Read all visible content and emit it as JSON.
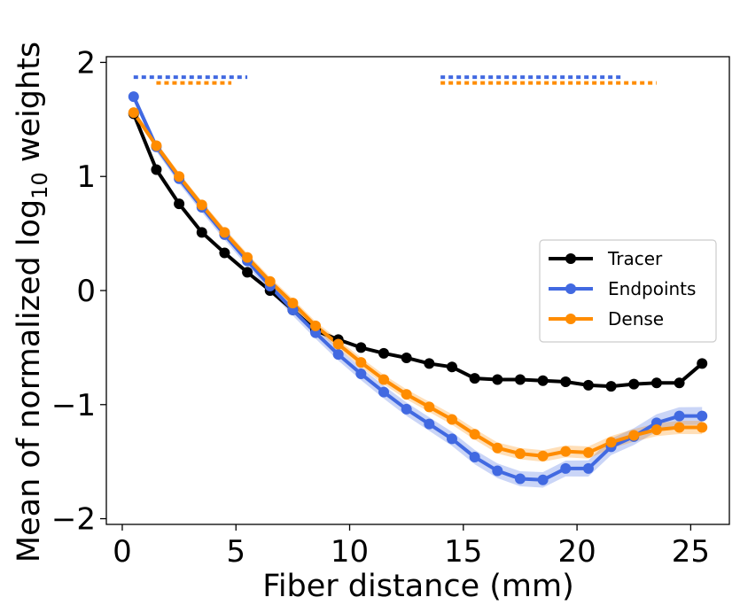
{
  "chart_data": {
    "type": "line",
    "xlabel": "Fiber distance (mm)",
    "ylabel": "Mean of normalized log",
    "ylabel_sub": "10",
    "ylabel_suffix": " weights",
    "xlim": [
      -0.7,
      26.7
    ],
    "ylim": [
      -2.05,
      2.05
    ],
    "xticks": [
      0,
      5,
      10,
      15,
      20,
      25
    ],
    "xtick_labels": [
      "0",
      "5",
      "10",
      "15",
      "20",
      "25"
    ],
    "yticks": [
      2,
      1,
      0,
      -1,
      -2
    ],
    "ytick_labels": [
      "2",
      "1",
      "0",
      "−1",
      "−2"
    ],
    "grid": false,
    "legend_placement": "center-right",
    "x": [
      0.5,
      1.5,
      2.5,
      3.5,
      4.5,
      5.5,
      6.5,
      7.5,
      8.5,
      9.5,
      10.5,
      11.5,
      12.5,
      13.5,
      14.5,
      15.5,
      16.5,
      17.5,
      18.5,
      19.5,
      20.5,
      21.5,
      22.5,
      23.5,
      24.5,
      25.5
    ],
    "series": [
      {
        "name": "Tracer",
        "color": "#000000",
        "values": [
          1.55,
          1.06,
          0.76,
          0.51,
          0.33,
          0.16,
          0.0,
          -0.17,
          -0.35,
          -0.43,
          -0.5,
          -0.55,
          -0.59,
          -0.64,
          -0.67,
          -0.77,
          -0.78,
          -0.78,
          -0.79,
          -0.8,
          -0.83,
          -0.84,
          -0.82,
          -0.81,
          -0.81,
          -0.64
        ]
      },
      {
        "name": "Endpoints",
        "color": "#4169e1",
        "band": 0.04,
        "values": [
          1.7,
          1.26,
          0.98,
          0.73,
          0.49,
          0.26,
          0.04,
          -0.17,
          -0.37,
          -0.56,
          -0.73,
          -0.89,
          -1.04,
          -1.17,
          -1.3,
          -1.46,
          -1.58,
          -1.65,
          -1.66,
          -1.56,
          -1.56,
          -1.37,
          -1.28,
          -1.16,
          -1.1,
          -1.1
        ]
      },
      {
        "name": "Dense",
        "color": "#ff8c00",
        "band": 0.03,
        "values": [
          1.56,
          1.27,
          1.0,
          0.75,
          0.51,
          0.29,
          0.08,
          -0.11,
          -0.31,
          -0.47,
          -0.63,
          -0.78,
          -0.91,
          -1.02,
          -1.13,
          -1.26,
          -1.38,
          -1.43,
          -1.45,
          -1.41,
          -1.42,
          -1.33,
          -1.27,
          -1.22,
          -1.2,
          -1.2
        ]
      }
    ],
    "significance_markers": [
      {
        "series": "Endpoints",
        "color": "#4169e1",
        "y": 1.87,
        "ranges": [
          [
            0.5,
            5.5
          ],
          [
            14.0,
            22.0
          ]
        ]
      },
      {
        "series": "Dense",
        "color": "#ff8c00",
        "y": 1.82,
        "ranges": [
          [
            1.5,
            4.8
          ],
          [
            14.0,
            23.5
          ]
        ]
      }
    ]
  }
}
